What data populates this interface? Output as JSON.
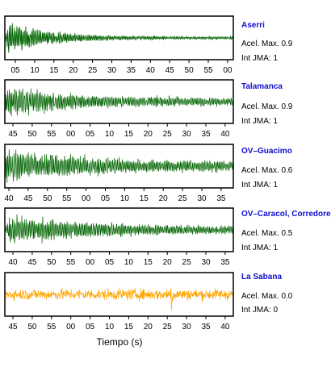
{
  "chart_data": {
    "type": "line",
    "xlabel": "Tiempo (s)",
    "panels": [
      {
        "station": "Aserri",
        "acel_label": "Acel. Max. 0.9",
        "jma_label": "Int JMA: 1",
        "color": "#006400",
        "tick_labels": [
          "05",
          "10",
          "15",
          "20",
          "25",
          "30",
          "35",
          "40",
          "45",
          "50",
          "55",
          "00"
        ],
        "amplitude_profile": "sharp onset at start, exponential decay"
      },
      {
        "station": "Talamanca",
        "acel_label": "Acel. Max. 0.9",
        "jma_label": "Int JMA: 1",
        "color": "#006400",
        "tick_labels": [
          "45",
          "50",
          "55",
          "00",
          "05",
          "10",
          "15",
          "20",
          "25",
          "30",
          "35",
          "40"
        ],
        "amplitude_profile": "onset at start, gradual decay"
      },
      {
        "station": "OV–Guacimo",
        "acel_label": "Acel. Max. 0.6",
        "jma_label": "Int JMA: 1",
        "color": "#006400",
        "tick_labels": [
          "40",
          "45",
          "50",
          "55",
          "00",
          "05",
          "10",
          "15",
          "20",
          "25",
          "30",
          "35"
        ],
        "amplitude_profile": "large oscillations early, gradual decay"
      },
      {
        "station": "OV–Caracol, Corredore",
        "acel_label": "Acel. Max. 0.5",
        "jma_label": "Int JMA: 1",
        "color": "#006400",
        "tick_labels": [
          "40",
          "45",
          "50",
          "55",
          "00",
          "05",
          "10",
          "15",
          "20",
          "25",
          "30",
          "35"
        ],
        "amplitude_profile": "peak early then decay"
      },
      {
        "station": "La Sabana",
        "acel_label": "Acel. Max. 0.0",
        "jma_label": "Int JMA: 0",
        "color": "#FFA500",
        "tick_labels": [
          "45",
          "50",
          "55",
          "00",
          "05",
          "10",
          "15",
          "20",
          "25",
          "30",
          "35",
          "40"
        ],
        "amplitude_profile": "stationary noise with isolated spike"
      }
    ]
  }
}
